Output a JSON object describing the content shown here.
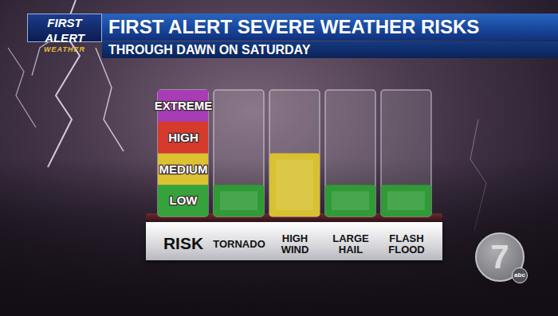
{
  "branding": {
    "logo": "FIRST ALERT",
    "logo_sub": "WEATHER",
    "station": "7",
    "network": "abc"
  },
  "chart_data": {
    "type": "bar",
    "title": "FIRST ALERT SEVERE WEATHER RISKS",
    "subtitle": "THROUGH DAWN ON SATURDAY",
    "categories": [
      "TORNADO",
      "HIGH WIND",
      "LARGE HAIL",
      "FLASH FLOOD"
    ],
    "values": [
      1,
      2,
      1,
      1
    ],
    "colors": [
      "#2f9a36",
      "#d8c030",
      "#2f9a36",
      "#2f9a36"
    ],
    "ylim": [
      0,
      4
    ],
    "tick_labels": "x",
    "risk_scale": {
      "label": "RISK",
      "levels": [
        {
          "label": "LOW",
          "value": 1,
          "color": "#35a23c"
        },
        {
          "label": "MEDIUM",
          "value": 2,
          "color": "#dcc233"
        },
        {
          "label": "HIGH",
          "value": 3,
          "color": "#d63a2c"
        },
        {
          "label": "EXTREME",
          "value": 4,
          "color": "#a83cb4"
        }
      ]
    }
  }
}
